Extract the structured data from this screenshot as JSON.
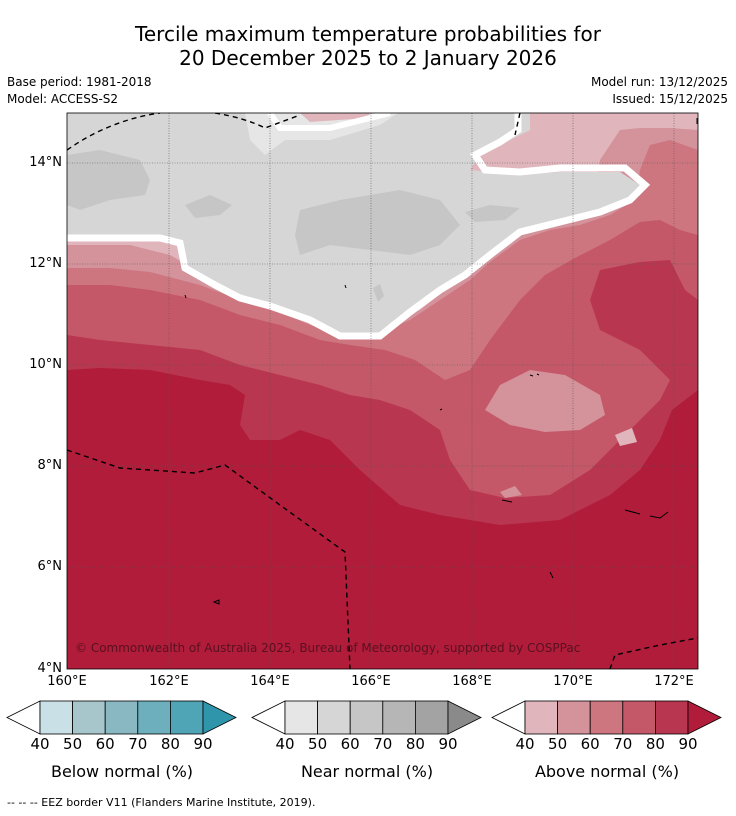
{
  "title": {
    "line1": "Tercile maximum temperature probabilities for",
    "line2": "20 December 2025 to 2 January 2026"
  },
  "meta": {
    "base_period": "Base period: 1981-2018",
    "model": "Model: ACCESS-S2",
    "model_run": "Model run: 13/12/2025",
    "issued": "Issued: 15/12/2025"
  },
  "map": {
    "lat_labels": [
      "14°N",
      "12°N",
      "10°N",
      "8°N",
      "6°N",
      "4°N"
    ],
    "lon_labels": [
      "160°E",
      "162°E",
      "164°E",
      "166°E",
      "168°E",
      "170°E",
      "172°E"
    ],
    "copyright": "© Commonwealth of Australia 2025, Bureau of Meteorology, supported by COSPPac"
  },
  "colorbars": [
    {
      "name": "below",
      "label": "Below normal (%)",
      "ticks": [
        "40",
        "50",
        "60",
        "70",
        "80",
        "90"
      ],
      "colors": [
        "#ffffff",
        "#c8e0e6",
        "#a6c6cb",
        "#8ab8c2",
        "#6eafbe",
        "#4fa4b6",
        "#2e95aa"
      ]
    },
    {
      "name": "near",
      "label": "Near normal (%)",
      "ticks": [
        "40",
        "50",
        "60",
        "70",
        "80",
        "90"
      ],
      "colors": [
        "#ffffff",
        "#e6e6e6",
        "#d6d6d6",
        "#c6c6c6",
        "#b6b6b6",
        "#a3a3a3",
        "#8a8a8a"
      ]
    },
    {
      "name": "above",
      "label": "Above normal (%)",
      "ticks": [
        "40",
        "50",
        "60",
        "70",
        "80",
        "90"
      ],
      "colors": [
        "#ffffff",
        "#e0b6bc",
        "#d4929b",
        "#cd7680",
        "#c55868",
        "#b93650",
        "#b01c3a"
      ]
    }
  ],
  "footnote": "--  --  -- EEZ border V11 (Flanders Marine Institute, 2019)."
}
